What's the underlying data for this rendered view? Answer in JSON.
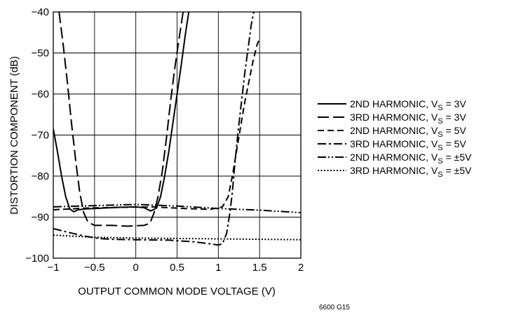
{
  "chart_data": {
    "type": "line",
    "title": "",
    "xlabel": "OUTPUT COMMON MODE VOLTAGE (V)",
    "ylabel": "DISTORTION COMPONENT (dB)",
    "xlim": [
      -1,
      2
    ],
    "ylim": [
      -100,
      -40
    ],
    "grid": true,
    "legend_position": "right",
    "x_ticks": [
      -1,
      -0.5,
      0,
      0.5,
      1,
      1.5,
      2
    ],
    "x_tick_labels": [
      "−1",
      "−0.5",
      "0",
      "0.5",
      "1",
      "1.5",
      "2"
    ],
    "y_ticks": [
      -100,
      -90,
      -80,
      -70,
      -60,
      -50,
      -40
    ],
    "y_tick_labels": [
      "−100",
      "−90",
      "−80",
      "−70",
      "−60",
      "−50",
      "−40"
    ],
    "series": [
      {
        "name": "2ND HARMONIC, V_S = 3V",
        "legend_main": "2ND HARMONIC, V",
        "legend_sub": "S",
        "legend_tail": " = 3V",
        "style": "solid",
        "points": [
          [
            -1,
            -68.5
          ],
          [
            -0.95,
            -74
          ],
          [
            -0.9,
            -80
          ],
          [
            -0.85,
            -85
          ],
          [
            -0.8,
            -88
          ],
          [
            -0.75,
            -88.7
          ],
          [
            -0.7,
            -88.2
          ],
          [
            -0.6,
            -88
          ],
          [
            -0.4,
            -87.8
          ],
          [
            -0.2,
            -87.6
          ],
          [
            0,
            -87.5
          ],
          [
            0.1,
            -87.7
          ],
          [
            0.18,
            -88.5
          ],
          [
            0.25,
            -87.8
          ],
          [
            0.3,
            -85
          ],
          [
            0.35,
            -80
          ],
          [
            0.4,
            -74
          ],
          [
            0.45,
            -67
          ],
          [
            0.5,
            -60
          ],
          [
            0.55,
            -53
          ],
          [
            0.6,
            -45.5
          ],
          [
            0.65,
            -39
          ]
        ]
      },
      {
        "name": "3RD HARMONIC, V_S = 3V",
        "legend_main": "3RD HARMONIC, V",
        "legend_sub": "S",
        "legend_tail": " = 3V",
        "style": "longdash",
        "points": [
          [
            -0.93,
            -40
          ],
          [
            -0.88,
            -48
          ],
          [
            -0.83,
            -57
          ],
          [
            -0.78,
            -67
          ],
          [
            -0.73,
            -76
          ],
          [
            -0.68,
            -84
          ],
          [
            -0.63,
            -89
          ],
          [
            -0.58,
            -91.2
          ],
          [
            -0.5,
            -92
          ],
          [
            -0.3,
            -92
          ],
          [
            -0.1,
            -92.2
          ],
          [
            0.1,
            -92
          ],
          [
            0.17,
            -91.5
          ],
          [
            0.22,
            -89
          ],
          [
            0.27,
            -85
          ],
          [
            0.32,
            -79
          ],
          [
            0.37,
            -71
          ],
          [
            0.42,
            -62
          ],
          [
            0.47,
            -54
          ],
          [
            0.52,
            -47
          ],
          [
            0.57,
            -40.5
          ],
          [
            0.6,
            -38
          ]
        ]
      },
      {
        "name": "2ND HARMONIC, V_S = 5V",
        "legend_main": "2ND HARMONIC, V",
        "legend_sub": "S",
        "legend_tail": " = 5V",
        "style": "dash",
        "points": [
          [
            -1,
            -88.2
          ],
          [
            -0.6,
            -87.8
          ],
          [
            -0.2,
            -87.6
          ],
          [
            0.2,
            -87.5
          ],
          [
            0.6,
            -87.9
          ],
          [
            0.9,
            -88.1
          ],
          [
            1.05,
            -87.5
          ],
          [
            1.12,
            -85
          ],
          [
            1.17,
            -80
          ],
          [
            1.22,
            -74
          ],
          [
            1.27,
            -68
          ],
          [
            1.32,
            -62
          ],
          [
            1.37,
            -57
          ],
          [
            1.42,
            -52
          ],
          [
            1.47,
            -48
          ],
          [
            1.5,
            -46.5
          ]
        ]
      },
      {
        "name": "3RD HARMONIC, V_S = 5V",
        "legend_main": "3RD HARMONIC, V",
        "legend_sub": "S",
        "legend_tail": " = 5V",
        "style": "dashdot",
        "points": [
          [
            -1,
            -92.8
          ],
          [
            -0.8,
            -93.8
          ],
          [
            -0.6,
            -94.7
          ],
          [
            -0.45,
            -95.2
          ],
          [
            -0.3,
            -95.4
          ],
          [
            0,
            -95.5
          ],
          [
            0.4,
            -95.6
          ],
          [
            0.7,
            -96
          ],
          [
            0.9,
            -96.5
          ],
          [
            1.0,
            -96.8
          ],
          [
            1.05,
            -96.5
          ],
          [
            1.1,
            -94
          ],
          [
            1.14,
            -89
          ],
          [
            1.17,
            -84
          ],
          [
            1.2,
            -77
          ],
          [
            1.24,
            -69
          ],
          [
            1.28,
            -62
          ],
          [
            1.32,
            -55
          ],
          [
            1.36,
            -49
          ],
          [
            1.4,
            -43
          ],
          [
            1.44,
            -39
          ]
        ]
      },
      {
        "name": "2ND HARMONIC, V_S = ±5V",
        "legend_main": "2ND HARMONIC, V",
        "legend_sub": "S",
        "legend_tail": " = ±5V",
        "style": "dashdotdot",
        "points": [
          [
            -1,
            -87.5
          ],
          [
            -0.5,
            -87.2
          ],
          [
            0,
            -86.9
          ],
          [
            0.5,
            -87.3
          ],
          [
            1,
            -87.9
          ],
          [
            1.5,
            -88.3
          ],
          [
            2,
            -88.9
          ]
        ]
      },
      {
        "name": "3RD HARMONIC, V_S = ±5V",
        "legend_main": "3RD HARMONIC, V",
        "legend_sub": "S",
        "legend_tail": " = ±5V",
        "style": "dot",
        "points": [
          [
            -1,
            -94.4
          ],
          [
            -0.5,
            -94.9
          ],
          [
            0,
            -95.1
          ],
          [
            0.5,
            -95.2
          ],
          [
            1,
            -95.3
          ],
          [
            1.5,
            -95.4
          ],
          [
            2,
            -95.5
          ]
        ]
      }
    ]
  },
  "figure_id": "6600 G15"
}
